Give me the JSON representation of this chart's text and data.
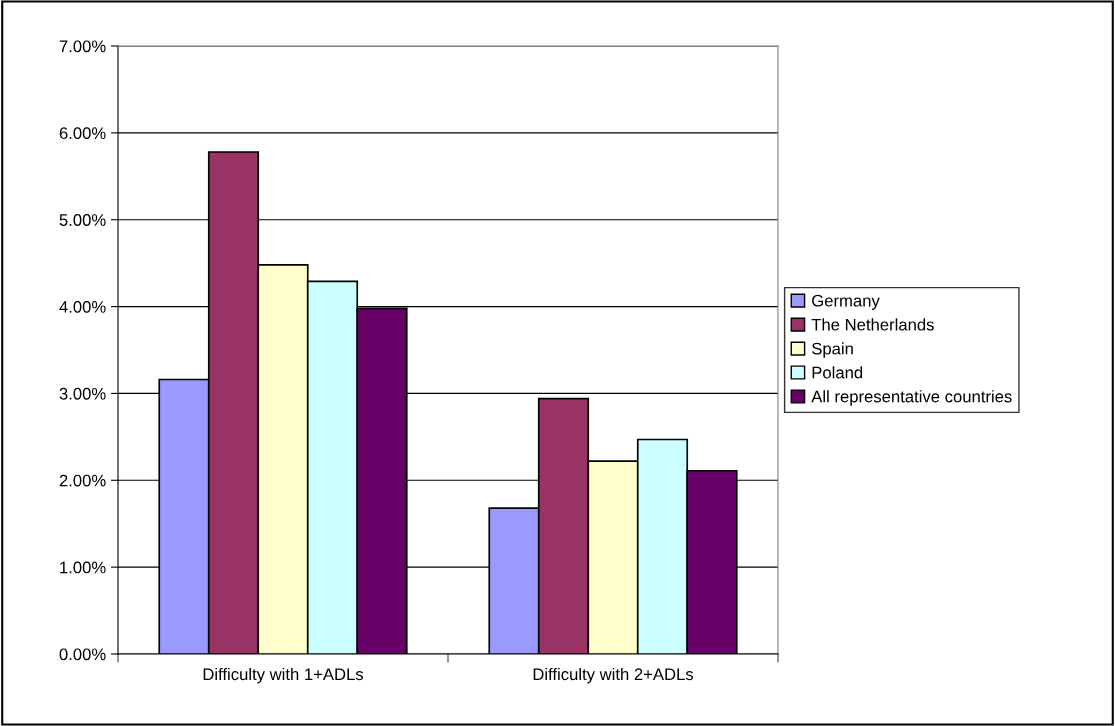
{
  "chart_data": {
    "type": "bar",
    "categories": [
      "Difficulty with 1+ADLs",
      "Difficulty with 2+ADLs"
    ],
    "series": [
      {
        "name": "Germany",
        "color": "#9999ff",
        "values": [
          3.16,
          1.68
        ]
      },
      {
        "name": "The Netherlands",
        "color": "#993366",
        "values": [
          5.78,
          2.94
        ]
      },
      {
        "name": "Spain",
        "color": "#ffffcc",
        "values": [
          4.48,
          2.22
        ]
      },
      {
        "name": "Poland",
        "color": "#ccffff",
        "values": [
          4.29,
          2.47
        ]
      },
      {
        "name": "All representative countries",
        "color": "#660066",
        "values": [
          3.98,
          2.11
        ]
      }
    ],
    "ylim": [
      0,
      7
    ],
    "yticks": [
      {
        "value": 0,
        "label": "0.00%"
      },
      {
        "value": 1,
        "label": "1.00%"
      },
      {
        "value": 2,
        "label": "2.00%"
      },
      {
        "value": 3,
        "label": "3.00%"
      },
      {
        "value": 4,
        "label": "4.00%"
      },
      {
        "value": 5,
        "label": "5.00%"
      },
      {
        "value": 6,
        "label": "6.00%"
      },
      {
        "value": 7,
        "label": "7.00%"
      }
    ],
    "grid": "y",
    "legend": "right"
  }
}
